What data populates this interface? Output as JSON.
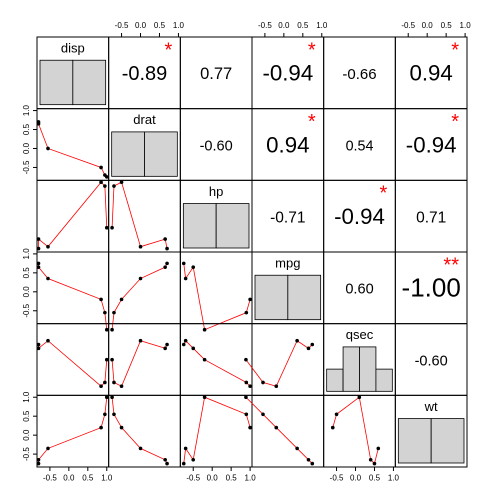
{
  "chart_data": {
    "type": "correlation_matrix",
    "variables": [
      "disp",
      "drat",
      "hp",
      "mpg",
      "qsec",
      "wt"
    ],
    "observations": [
      [
        -0.8,
        -0.8,
        -0.55,
        0.85,
        0.95,
        1.0
      ],
      [
        0.7,
        0.65,
        0.0,
        -0.5,
        -0.7,
        -0.75
      ],
      [
        -0.75,
        -0.5,
        -0.7,
        1.0,
        0.9,
        -0.2
      ],
      [
        0.75,
        0.65,
        0.35,
        -0.2,
        -0.55,
        -1.0
      ],
      [
        0.5,
        0.4,
        0.6,
        -0.6,
        -0.5,
        0.1
      ],
      [
        -0.75,
        -0.65,
        -0.35,
        0.2,
        0.55,
        1.0
      ]
    ],
    "correlations": [
      [
        -0.89,
        0.77,
        -0.94,
        -0.66,
        0.94
      ],
      [
        -0.6,
        0.94,
        0.54,
        -0.94
      ],
      [
        -0.71,
        -0.94,
        0.71
      ],
      [
        0.6,
        -1.0
      ],
      [
        -0.6
      ]
    ],
    "value_labels": [
      [
        "-0.89",
        "0.77",
        "-0.94",
        "-0.66",
        "0.94"
      ],
      [
        "-0.60",
        "0.94",
        "0.54",
        "-0.94"
      ],
      [
        "-0.71",
        "-0.94",
        "0.71"
      ],
      [
        "0.60",
        "-1.00"
      ],
      [
        "-0.60"
      ]
    ],
    "stars": [
      [
        "*",
        null,
        "*",
        null,
        "*"
      ],
      [
        null,
        "*",
        null,
        "*"
      ],
      [
        null,
        "*",
        null
      ],
      [
        null,
        "**"
      ],
      [
        null
      ]
    ],
    "histograms": [
      {
        "bins": [
          -1,
          0,
          1
        ],
        "counts": [
          3,
          3
        ]
      },
      {
        "bins": [
          -1,
          0,
          1
        ],
        "counts": [
          3,
          3
        ]
      },
      {
        "bins": [
          -1,
          0,
          1
        ],
        "counts": [
          3,
          3
        ]
      },
      {
        "bins": [
          -1,
          0,
          1
        ],
        "counts": [
          3,
          3
        ]
      },
      {
        "bins": [
          -1,
          -0.5,
          0,
          0.5,
          1
        ],
        "counts": [
          1,
          2,
          2,
          1
        ]
      },
      {
        "bins": [
          -1,
          0,
          1
        ],
        "counts": [
          3,
          3
        ]
      }
    ],
    "lim": [
      -0.84,
      1.05
    ],
    "ticks": [
      -0.5,
      {
        "value": 0,
        "label": "0.0"
      },
      0.5,
      {
        "value": 1,
        "label": "1.0"
      }
    ],
    "point_color": "#000000",
    "smooth_color": "#ff0000",
    "star_color": "#ff0000",
    "hist_color": "#d3d3d3"
  }
}
